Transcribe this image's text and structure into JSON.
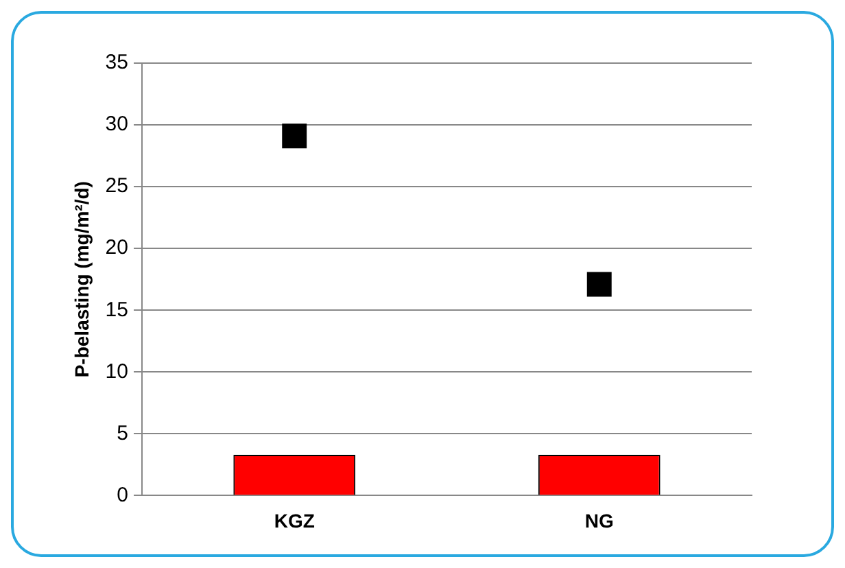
{
  "chart_data": {
    "type": "bar",
    "ylabel": "P-belasting (mg/m²/d)",
    "categories": [
      "KGZ",
      "NG"
    ],
    "series": [
      {
        "color": "#ff0000",
        "values": [
          3.3,
          3.3
        ]
      },
      {
        "type": "scatter",
        "color": "#000000",
        "marker": "square",
        "x": [
          "KGZ",
          "NG"
        ],
        "values": [
          29.1,
          17.1
        ]
      }
    ],
    "ylim": [
      0,
      35
    ],
    "yticks": [
      0,
      5,
      10,
      15,
      20,
      25,
      30,
      35
    ],
    "grid": "y",
    "legend": false
  }
}
